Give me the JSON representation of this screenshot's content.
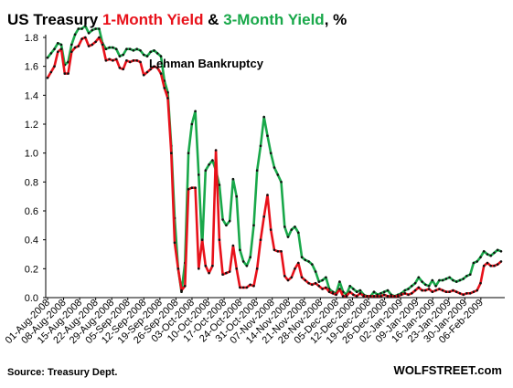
{
  "chart_data": {
    "type": "line",
    "title_parts": [
      {
        "text": "US Treasury ",
        "color": "#000000"
      },
      {
        "text": "1-Month Yield",
        "color": "#e8111a"
      },
      {
        "text": " & ",
        "color": "#000000"
      },
      {
        "text": "3-Month Yield",
        "color": "#19a84a"
      },
      {
        "text": ", %",
        "color": "#000000"
      }
    ],
    "ylim": [
      0,
      1.8
    ],
    "yticks": [
      "0.0",
      "0.2",
      "0.4",
      "0.6",
      "0.8",
      "1.0",
      "1.2",
      "1.4",
      "1.6",
      "1.8"
    ],
    "xticks": [
      "01-Aug-2008",
      "08-Aug-2008",
      "15-Aug-2008",
      "22-Aug-2008",
      "29-Aug-2008",
      "05-Sep-2008",
      "12-Sep-2008",
      "19-Sep-2008",
      "26-Sep-2008",
      "03-Oct-2008",
      "10-Oct-2008",
      "17-Oct-2008",
      "24-Oct-2008",
      "31-Oct-2008",
      "07-Nov-2008",
      "14-Nov-2008",
      "21-Nov-2008",
      "28-Nov-2008",
      "05-Dec-2008",
      "12-Dec-2008",
      "19-Dec-2008",
      "26-Dec-2008",
      "02-Jan-2009",
      "09-Jan-2009",
      "16-Jan-2009",
      "23-Jan-2009",
      "30-Jan-2009",
      "06-Feb-2009"
    ],
    "grid": false,
    "legend": "none",
    "annotation": "Lehman Bankruptcy",
    "series": [
      {
        "color": "#e8111a",
        "values": [
          1.52,
          1.56,
          1.6,
          1.7,
          1.72,
          1.55,
          1.55,
          1.7,
          1.73,
          1.74,
          1.79,
          1.8,
          1.74,
          1.75,
          1.77,
          1.8,
          1.75,
          1.64,
          1.65,
          1.64,
          1.65,
          1.59,
          1.58,
          1.64,
          1.63,
          1.64,
          1.64,
          1.63,
          1.54,
          1.56,
          1.58,
          1.6,
          1.59,
          1.55,
          1.45,
          1.38,
          1.0,
          0.38,
          0.2,
          0.05,
          0.08,
          0.75,
          0.76,
          0.76,
          0.2,
          0.4,
          0.22,
          0.17,
          0.22,
          1.02,
          0.4,
          0.16,
          0.17,
          0.18,
          0.36,
          0.2,
          0.07,
          0.07,
          0.07,
          0.09,
          0.08,
          0.2,
          0.4,
          0.56,
          0.71,
          0.47,
          0.33,
          0.32,
          0.32,
          0.15,
          0.12,
          0.14,
          0.2,
          0.24,
          0.14,
          0.12,
          0.1,
          0.09,
          0.1,
          0.08,
          0.06,
          0.07,
          0.04,
          0.03,
          0.02,
          0.06,
          0.01,
          0.01,
          0.04,
          0.02,
          0.01,
          0.03,
          0.01,
          0.01,
          0.01,
          0.01,
          0.01,
          0.01,
          0.02,
          0.01,
          0.01,
          0.01,
          0.01,
          0.02,
          0.03,
          0.02,
          0.03,
          0.05,
          0.07,
          0.05,
          0.05,
          0.06,
          0.04,
          0.05,
          0.06,
          0.05,
          0.04,
          0.04,
          0.05,
          0.04,
          0.03,
          0.02,
          0.03,
          0.03,
          0.04,
          0.05,
          0.1,
          0.22,
          0.24,
          0.22,
          0.22,
          0.23,
          0.25
        ]
      },
      {
        "color": "#19a84a",
        "values": [
          1.66,
          1.69,
          1.72,
          1.76,
          1.75,
          1.61,
          1.63,
          1.75,
          1.82,
          1.86,
          1.86,
          1.88,
          1.83,
          1.85,
          1.86,
          1.86,
          1.76,
          1.72,
          1.73,
          1.73,
          1.72,
          1.67,
          1.68,
          1.72,
          1.72,
          1.71,
          1.72,
          1.71,
          1.68,
          1.67,
          1.7,
          1.71,
          1.69,
          1.67,
          1.5,
          1.42,
          1.05,
          0.55,
          0.2,
          0.04,
          0.24,
          1.0,
          1.2,
          1.29,
          0.85,
          0.35,
          0.88,
          0.92,
          0.95,
          0.88,
          0.78,
          0.54,
          0.5,
          0.53,
          0.82,
          0.7,
          0.33,
          0.25,
          0.22,
          0.28,
          0.5,
          0.88,
          1.05,
          1.25,
          1.12,
          1.0,
          0.9,
          0.85,
          0.8,
          0.49,
          0.42,
          0.47,
          0.49,
          0.45,
          0.28,
          0.26,
          0.25,
          0.23,
          0.18,
          0.11,
          0.12,
          0.14,
          0.06,
          0.04,
          0.03,
          0.11,
          0.04,
          0.02,
          0.08,
          0.06,
          0.04,
          0.05,
          0.02,
          0.01,
          0.01,
          0.04,
          0.02,
          0.03,
          0.04,
          0.05,
          0.02,
          0.01,
          0.02,
          0.03,
          0.05,
          0.06,
          0.08,
          0.1,
          0.14,
          0.11,
          0.09,
          0.08,
          0.12,
          0.08,
          0.12,
          0.12,
          0.13,
          0.14,
          0.12,
          0.11,
          0.12,
          0.13,
          0.15,
          0.16,
          0.24,
          0.25,
          0.28,
          0.32,
          0.3,
          0.29,
          0.31,
          0.33,
          0.32
        ]
      }
    ]
  },
  "footer": {
    "source": "Source: Treasury Dept.",
    "brand": "WOLFSTREET.com"
  }
}
